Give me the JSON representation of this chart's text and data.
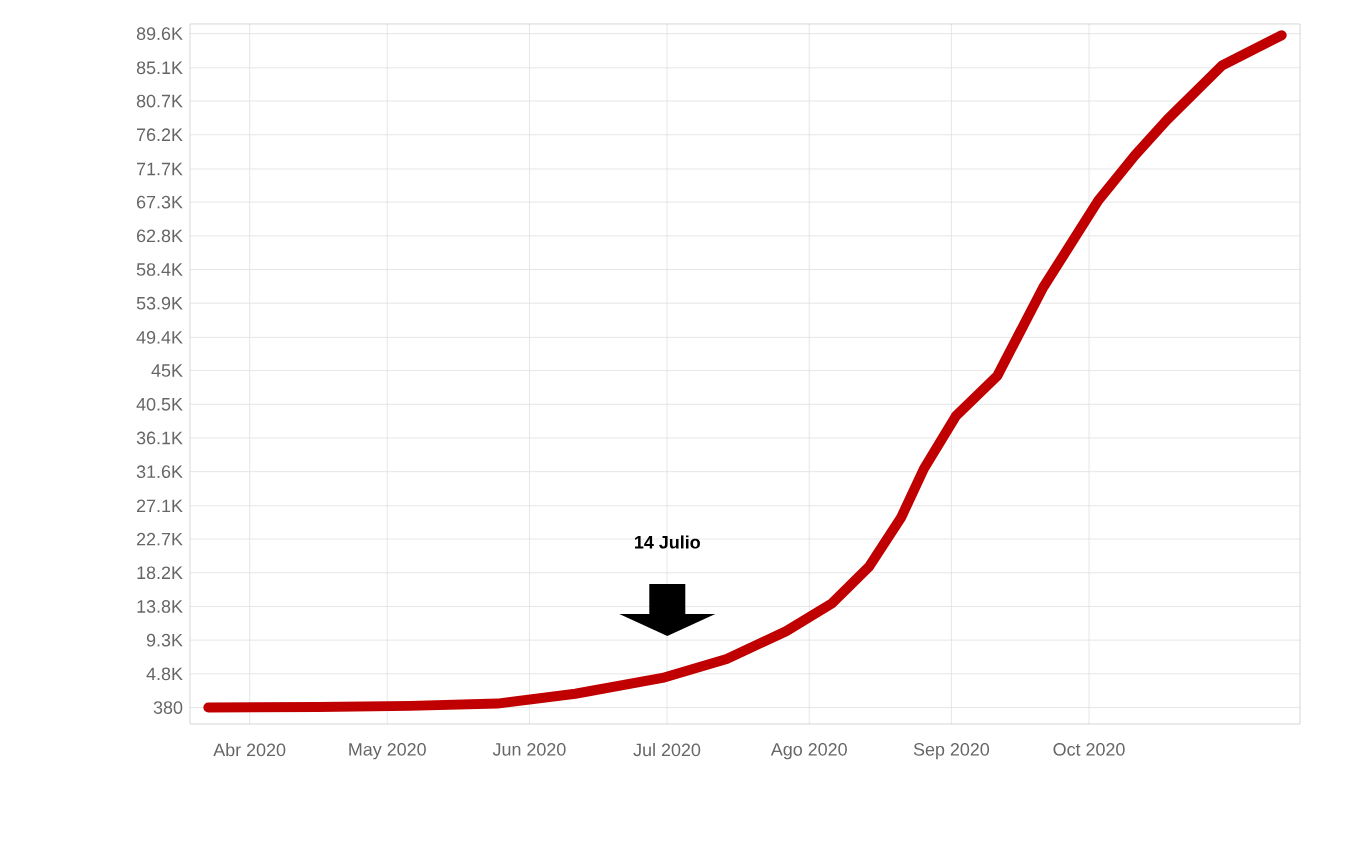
{
  "chart_data": {
    "type": "line",
    "color": "#c00000",
    "grid": true,
    "x": [
      "2020-04-06",
      "2020-04-30",
      "2020-05-20",
      "2020-06-08",
      "2020-06-25",
      "2020-07-14",
      "2020-07-28",
      "2020-08-10",
      "2020-08-20",
      "2020-08-28",
      "2020-09-04",
      "2020-09-09",
      "2020-09-16",
      "2020-09-25",
      "2020-10-05",
      "2020-10-17",
      "2020-10-25",
      "2020-11-01",
      "2020-11-13",
      "2020-11-26"
    ],
    "values": [
      380,
      450,
      600,
      900,
      2200,
      4300,
      6800,
      10500,
      14200,
      19000,
      25500,
      32000,
      39000,
      44300,
      56000,
      67500,
      73500,
      78200,
      85400,
      89400
    ],
    "xlim": [
      "2020-04-02",
      "2020-11-30"
    ],
    "xticks": [
      {
        "value": "2020-04-15",
        "label": "Abr 2020"
      },
      {
        "value": "2020-05-15",
        "label": "May 2020"
      },
      {
        "value": "2020-06-15",
        "label": "Jun 2020"
      },
      {
        "value": "2020-07-15",
        "label": "Jul 2020"
      },
      {
        "value": "2020-08-15",
        "label": "Ago 2020"
      },
      {
        "value": "2020-09-15",
        "label": "Sep 2020"
      },
      {
        "value": "2020-10-15",
        "label": "Oct 2020"
      }
    ],
    "ylim": [
      -1800,
      90900
    ],
    "yticks": [
      {
        "value": 380,
        "label": "380"
      },
      {
        "value": 4842,
        "label": "4.8K"
      },
      {
        "value": 9304,
        "label": "9.3K"
      },
      {
        "value": 13766,
        "label": "13.8K"
      },
      {
        "value": 18228,
        "label": "18.2K"
      },
      {
        "value": 22690,
        "label": "22.7K"
      },
      {
        "value": 27100,
        "label": "27.1K"
      },
      {
        "value": 31614,
        "label": "31.6K"
      },
      {
        "value": 36076,
        "label": "36.1K"
      },
      {
        "value": 40538,
        "label": "40.5K"
      },
      {
        "value": 45000,
        "label": "45K"
      },
      {
        "value": 49400,
        "label": "49.4K"
      },
      {
        "value": 53924,
        "label": "53.9K"
      },
      {
        "value": 58386,
        "label": "58.4K"
      },
      {
        "value": 62848,
        "label": "62.8K"
      },
      {
        "value": 67310,
        "label": "67.3K"
      },
      {
        "value": 71700,
        "label": "71.7K"
      },
      {
        "value": 76234,
        "label": "76.2K"
      },
      {
        "value": 80696,
        "label": "80.7K"
      },
      {
        "value": 85100,
        "label": "85.1K"
      },
      {
        "value": 89620,
        "label": "89.6K"
      }
    ],
    "annotations": [
      "14 Julio"
    ]
  }
}
